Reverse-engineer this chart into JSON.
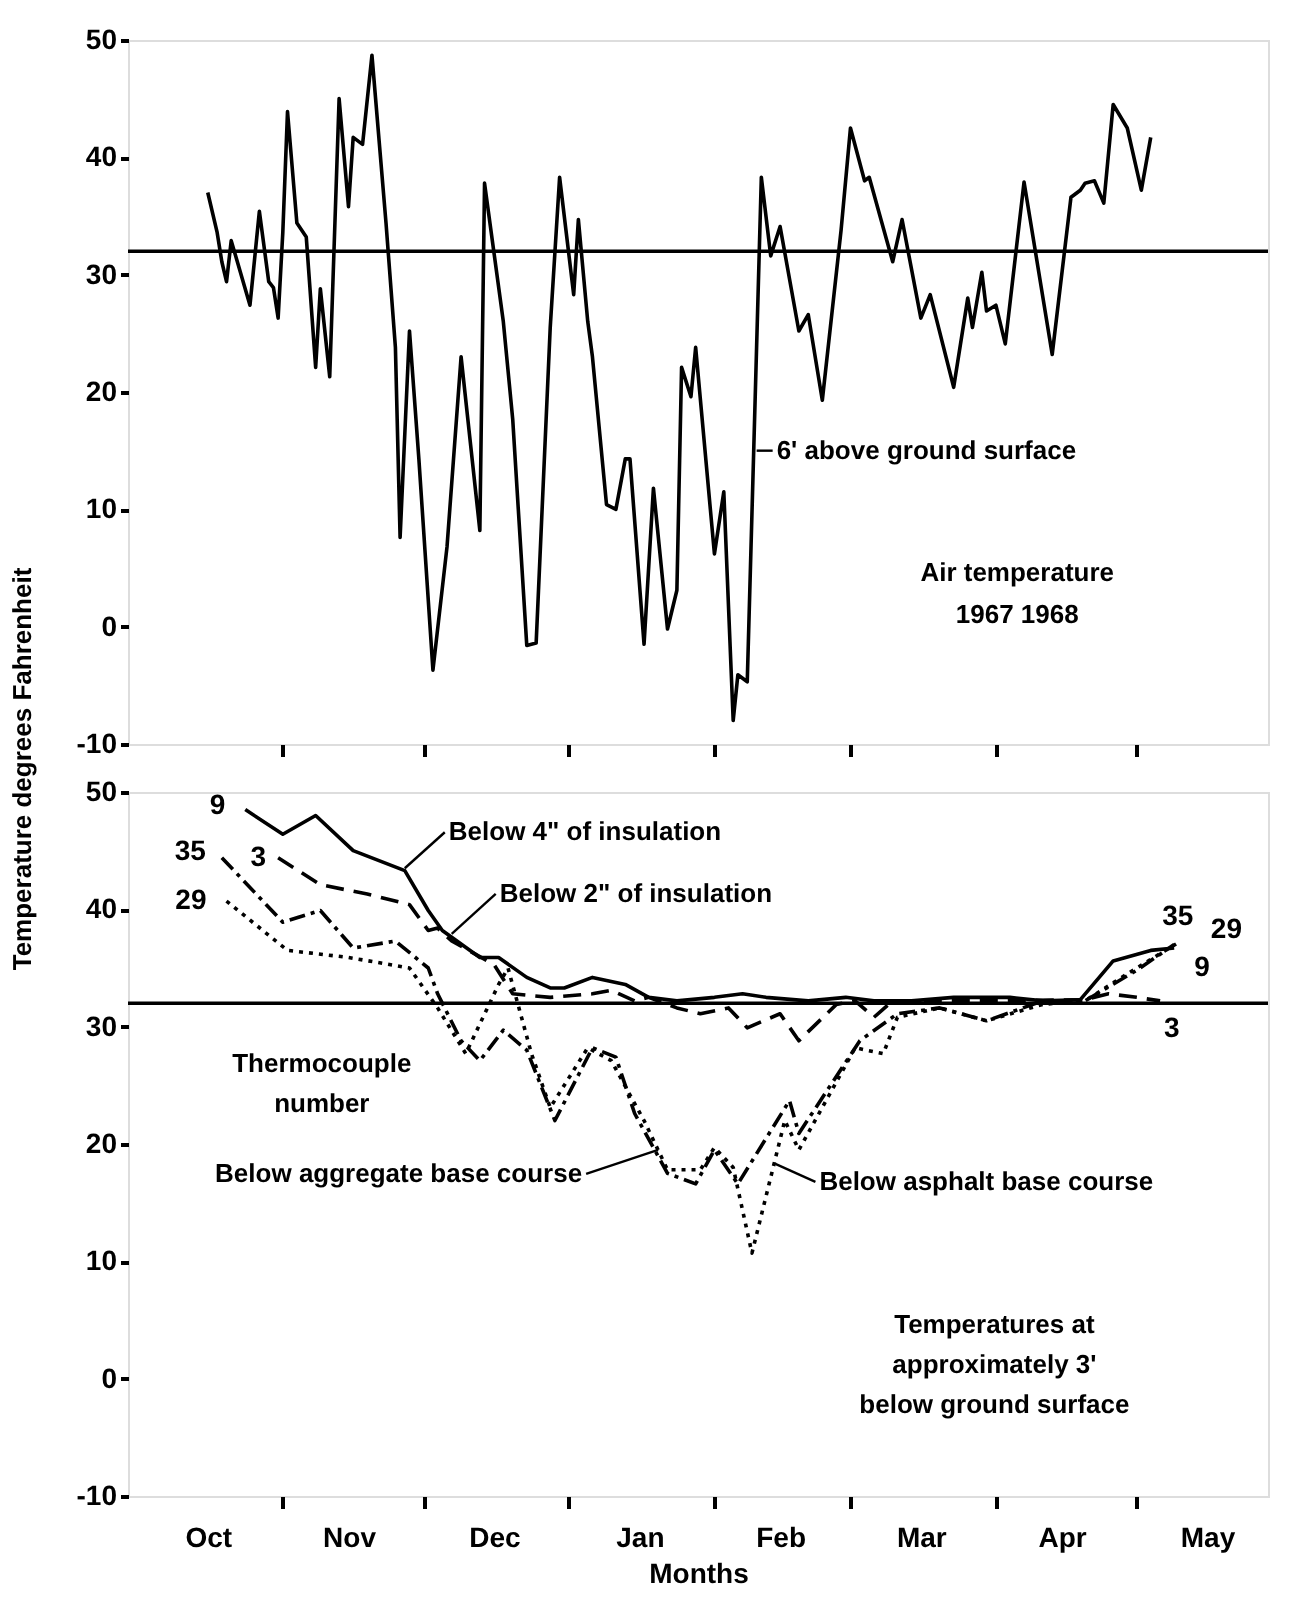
{
  "chart_data": [
    {
      "type": "line",
      "ylabel": "Temperature degrees Fahrenheit",
      "xlim": [
        "1967-09-29",
        "1968-05-29"
      ],
      "ylim": [
        -10,
        50
      ],
      "yticks": [
        -10,
        0,
        10,
        20,
        30,
        40,
        50
      ],
      "xticks": [
        {
          "value": "1967-11-01",
          "label": null
        },
        {
          "value": "1967-12-01",
          "label": null
        },
        {
          "value": "1968-01-01",
          "label": null
        },
        {
          "value": "1968-02-01",
          "label": null
        },
        {
          "value": "1968-03-01",
          "label": null
        },
        {
          "value": "1968-04-01",
          "label": null
        },
        {
          "value": "1968-05-01",
          "label": null
        }
      ],
      "tick_labels": "y",
      "grid": false,
      "series": [
        {
          "color": "#000000",
          "line_style": "solid",
          "x": [
            "1967-10-16",
            "1967-10-18",
            "1967-10-19",
            "1967-10-20",
            "1967-10-21",
            "1967-10-25",
            "1967-10-27",
            "1967-10-29",
            "1967-10-30",
            "1967-10-31",
            "1967-11-01",
            "1967-11-02",
            "1967-11-04",
            "1967-11-06",
            "1967-11-08",
            "1967-11-09",
            "1967-11-11",
            "1967-11-13",
            "1967-11-15",
            "1967-11-16",
            "1967-11-18",
            "1967-11-20",
            "1967-11-23",
            "1967-11-25",
            "1967-11-26",
            "1967-11-28",
            "1967-11-30",
            "1967-12-03",
            "1967-12-06",
            "1967-12-09",
            "1967-12-13",
            "1967-12-14",
            "1967-12-18",
            "1967-12-20",
            "1967-12-23",
            "1967-12-25",
            "1967-12-28",
            "1967-12-30",
            "1968-01-02",
            "1968-01-03",
            "1968-01-05",
            "1968-01-06",
            "1968-01-09",
            "1968-01-11",
            "1968-01-13",
            "1968-01-14",
            "1968-01-17",
            "1968-01-19",
            "1968-01-22",
            "1968-01-24",
            "1968-01-25",
            "1968-01-27",
            "1968-01-28",
            "1968-02-01",
            "1968-02-03",
            "1968-02-05",
            "1968-02-06",
            "1968-02-08",
            "1968-02-11",
            "1968-02-13",
            "1968-02-15",
            "1968-02-19",
            "1968-02-21",
            "1968-02-24",
            "1968-02-28",
            "1968-03-01",
            "1968-03-04",
            "1968-03-05",
            "1968-03-10",
            "1968-03-12",
            "1968-03-16",
            "1968-03-18",
            "1968-03-23",
            "1968-03-26",
            "1968-03-27",
            "1968-03-29",
            "1968-03-30",
            "1968-04-01",
            "1968-04-03",
            "1968-04-07",
            "1968-04-13",
            "1968-04-17",
            "1968-04-19",
            "1968-04-20",
            "1968-04-22",
            "1968-04-24",
            "1968-04-26",
            "1968-04-29",
            "1968-05-02",
            "1968-05-04"
          ],
          "values": [
            37.0,
            33.6,
            31.1,
            29.4,
            32.9,
            27.4,
            35.4,
            29.4,
            28.9,
            26.3,
            33.6,
            43.9,
            34.4,
            33.2,
            22.1,
            28.8,
            21.3,
            45.0,
            35.8,
            41.7,
            41.1,
            48.7,
            34.4,
            23.8,
            7.6,
            25.2,
            14.3,
            -3.7,
            6.8,
            23.0,
            8.2,
            37.8,
            26.0,
            17.7,
            -1.6,
            -1.4,
            25.5,
            38.3,
            28.3,
            34.7,
            26.0,
            23.0,
            10.4,
            10.0,
            14.3,
            14.3,
            -1.5,
            11.8,
            -0.2,
            3.1,
            22.1,
            19.6,
            23.8,
            6.2,
            11.5,
            -8.0,
            -4.1,
            -4.7,
            38.3,
            31.6,
            34.1,
            25.2,
            26.6,
            19.3,
            33.8,
            42.5,
            38.0,
            38.3,
            31.1,
            34.7,
            26.3,
            28.3,
            20.4,
            28.0,
            25.5,
            30.2,
            26.9,
            27.4,
            24.1,
            37.9,
            23.2,
            36.6,
            37.2,
            37.8,
            38.0,
            36.1,
            44.5,
            42.5,
            37.2,
            41.7
          ]
        }
      ],
      "ref_lines": [
        {
          "axis": "y",
          "value": 32
        }
      ],
      "annotations": [
        {
          "text": "6' above ground surface",
          "x": "1968-02-10",
          "y": 15.0
        },
        "Air temperature",
        "1967      1968"
      ]
    },
    {
      "type": "line",
      "xlabel": "Months",
      "xlim": [
        "1967-09-29",
        "1968-05-29"
      ],
      "ylim": [
        -10,
        50
      ],
      "yticks": [
        -10,
        0,
        10,
        20,
        30,
        40,
        50
      ],
      "xticks": [
        {
          "value": "1967-10-16",
          "label": "Oct"
        },
        {
          "value": "1967-11-01",
          "label": null
        },
        {
          "value": "1967-11-15",
          "label": "Nov"
        },
        {
          "value": "1967-12-01",
          "label": null
        },
        {
          "value": "1967-12-16",
          "label": "Dec"
        },
        {
          "value": "1968-01-01",
          "label": null
        },
        {
          "value": "1968-01-16",
          "label": "Jan"
        },
        {
          "value": "1968-02-01",
          "label": null
        },
        {
          "value": "1968-02-15",
          "label": "Feb"
        },
        {
          "value": "1968-03-01",
          "label": null
        },
        {
          "value": "1968-03-16",
          "label": "Mar"
        },
        {
          "value": "1968-04-01",
          "label": null
        },
        {
          "value": "1968-04-15",
          "label": "Apr"
        },
        {
          "value": "1968-05-01",
          "label": null
        },
        {
          "value": "1968-05-16",
          "label": "May"
        }
      ],
      "grid": false,
      "series": [
        {
          "name": "9",
          "color": "#000000",
          "line_style": "solid",
          "x": [
            "1967-10-24",
            "1967-11-01",
            "1967-11-08",
            "1967-11-16",
            "1967-11-27",
            "1967-12-02",
            "1967-12-05",
            "1967-12-13",
            "1967-12-17",
            "1967-12-23",
            "1967-12-28",
            "1967-12-31",
            "1968-01-06",
            "1968-01-13",
            "1968-01-18",
            "1968-01-24",
            "1968-02-01",
            "1968-02-07",
            "1968-02-12",
            "1968-02-21",
            "1968-02-29",
            "1968-03-06",
            "1968-03-14",
            "1968-03-23",
            "1968-04-04",
            "1968-04-11",
            "1968-04-19",
            "1968-04-26",
            "1968-05-04",
            "1968-05-09"
          ],
          "values": [
            48.5,
            46.4,
            48.0,
            45.0,
            43.3,
            39.9,
            38.2,
            35.9,
            35.9,
            34.2,
            33.3,
            33.3,
            34.2,
            33.6,
            32.5,
            32.2,
            32.5,
            32.8,
            32.5,
            32.2,
            32.5,
            32.2,
            32.2,
            32.5,
            32.5,
            32.2,
            32.3,
            35.6,
            36.5,
            36.7
          ]
        },
        {
          "name": "3",
          "color": "#000000",
          "line_style": "dashed",
          "x": [
            "1967-10-31",
            "1967-11-09",
            "1967-11-19",
            "1967-11-28",
            "1967-12-02",
            "1967-12-04",
            "1967-12-07",
            "1967-12-16",
            "1967-12-20",
            "1967-12-28",
            "1968-01-06",
            "1968-01-10",
            "1968-01-15",
            "1968-01-18",
            "1968-01-24",
            "1968-01-29",
            "1968-02-04",
            "1968-02-08",
            "1968-02-15",
            "1968-02-19",
            "1968-02-27",
            "1968-03-02",
            "1968-03-06",
            "1968-03-10",
            "1968-03-20",
            "1968-04-03",
            "1968-04-20",
            "1968-04-25",
            "1968-05-01",
            "1968-05-06"
          ],
          "values": [
            44.4,
            42.1,
            41.3,
            40.4,
            38.2,
            38.4,
            37.3,
            35.3,
            32.8,
            32.5,
            32.8,
            33.1,
            32.2,
            32.5,
            31.6,
            31.1,
            31.6,
            29.9,
            31.1,
            28.8,
            31.9,
            32.2,
            30.8,
            32.2,
            32.2,
            32.2,
            32.3,
            32.8,
            32.5,
            32.2
          ]
        },
        {
          "name": "35",
          "color": "#000000",
          "line_style": "dashdot",
          "x": [
            "1967-10-19",
            "1967-11-01",
            "1967-11-09",
            "1967-11-16",
            "1967-11-25",
            "1967-12-02",
            "1967-12-04",
            "1967-12-09",
            "1967-12-13",
            "1967-12-18",
            "1967-12-23",
            "1967-12-29",
            "1968-01-06",
            "1968-01-11",
            "1968-01-15",
            "1968-01-22",
            "1968-01-28",
            "1968-02-01",
            "1968-02-06",
            "1968-02-17",
            "1968-02-19",
            "1968-03-03",
            "1968-03-11",
            "1968-03-20",
            "1968-03-30",
            "1968-04-11",
            "1968-04-20",
            "1968-05-01",
            "1968-05-09"
          ],
          "values": [
            44.4,
            38.9,
            39.9,
            36.7,
            37.3,
            35.0,
            32.8,
            28.8,
            27.1,
            29.7,
            28.0,
            22.0,
            28.2,
            27.4,
            22.6,
            17.5,
            16.6,
            19.5,
            16.6,
            23.7,
            20.9,
            28.8,
            31.1,
            31.6,
            30.5,
            32.2,
            32.2,
            34.8,
            37.0
          ]
        },
        {
          "name": "29",
          "color": "#000000",
          "line_style": "dotted",
          "x": [
            "1967-10-20",
            "1967-11-02",
            "1967-11-15",
            "1967-11-28",
            "1967-12-04",
            "1967-12-10",
            "1967-12-17",
            "1967-12-19",
            "1967-12-24",
            "1967-12-28",
            "1968-01-05",
            "1968-01-10",
            "1968-01-17",
            "1968-01-22",
            "1968-01-29",
            "1968-02-01",
            "1968-02-05",
            "1968-02-09",
            "1968-02-16",
            "1968-02-19",
            "1968-03-02",
            "1968-03-08",
            "1968-03-11",
            "1968-03-20",
            "1968-03-30",
            "1968-04-11",
            "1968-04-20",
            "1968-04-29",
            "1968-05-10"
          ],
          "values": [
            40.7,
            36.5,
            35.9,
            35.0,
            31.6,
            27.7,
            33.6,
            35.0,
            27.7,
            23.1,
            28.2,
            27.1,
            22.0,
            17.8,
            17.8,
            19.7,
            18.0,
            10.7,
            22.0,
            19.5,
            28.2,
            27.7,
            30.8,
            31.6,
            30.5,
            31.9,
            32.2,
            34.5,
            37.2
          ]
        }
      ],
      "ref_lines": [
        {
          "axis": "y",
          "value": 32
        }
      ],
      "annotations": [
        {
          "text": "Below 4\" of insulation",
          "x": "1967-11-27",
          "y": 43.5
        },
        {
          "text": "Below 2\" of insulation",
          "x": "1967-12-07",
          "y": 37.9
        },
        "Thermocouple\nnumber",
        {
          "text": "Below aggregate base course",
          "x": "1968-01-20",
          "y": 19.5
        },
        {
          "text": "Below asphalt base course",
          "x": "1968-02-14",
          "y": 18.3
        },
        "Temperatures at\napproximately 3'\nbelow ground surface"
      ]
    }
  ]
}
